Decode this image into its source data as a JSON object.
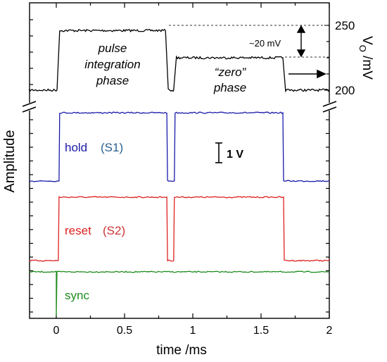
{
  "chart_data": {
    "type": "line",
    "xlabel": "time /ms",
    "ylabel_left": "Amplitude",
    "ylabel_right": "V",
    "ylabel_right_sub": "O",
    "ylabel_right_unit": " /mV",
    "xlim": [
      -0.2,
      2.0
    ],
    "xticks": [
      "0",
      "0.5",
      "1",
      "1.5",
      "2"
    ],
    "xtick_values": [
      0,
      0.5,
      1,
      1.5,
      2
    ],
    "right_ticks": [
      "250",
      "200"
    ],
    "right_tick_values": [
      250,
      200
    ],
    "upper_panel": {
      "ylim": [
        196,
        256
      ],
      "series": [
        {
          "name": "",
          "color": "#000000",
          "points": [
            [
              -0.2,
              200
            ],
            [
              0.005,
              200
            ],
            [
              0.025,
              246
            ],
            [
              0.8,
              246
            ],
            [
              0.82,
              201
            ],
            [
              0.84,
              200
            ],
            [
              0.86,
              200
            ],
            [
              0.88,
              225
            ],
            [
              1.66,
              225
            ],
            [
              1.68,
              200
            ],
            [
              2.0,
              200
            ]
          ]
        }
      ],
      "annotations": {
        "pulse_phase": [
          "pulse",
          "integration",
          "phase"
        ],
        "zero_phase": [
          "“zero”",
          "phase"
        ],
        "delta": "~20 mV"
      }
    },
    "lower_panel": {
      "series": [
        {
          "name": "hold",
          "tag": "(S1)",
          "color": "#1a1aaa",
          "tag_color": "#2a5f8f",
          "points": [
            [
              -0.2,
              0
            ],
            [
              0.02,
              0
            ],
            [
              0.025,
              3.8
            ],
            [
              0.81,
              3.8
            ],
            [
              0.815,
              0
            ],
            [
              0.865,
              0
            ],
            [
              0.87,
              3.8
            ],
            [
              1.66,
              3.8
            ],
            [
              1.665,
              0
            ],
            [
              2.0,
              0
            ]
          ]
        },
        {
          "name": "reset",
          "tag": "(S2)",
          "color": "#dd2222",
          "tag_color": "#cc3333",
          "points": [
            [
              -0.2,
              0
            ],
            [
              0.015,
              0
            ],
            [
              0.02,
              3.8
            ],
            [
              0.81,
              3.8
            ],
            [
              0.815,
              0
            ],
            [
              0.86,
              0
            ],
            [
              0.865,
              3.8
            ],
            [
              1.665,
              3.8
            ],
            [
              1.67,
              0
            ],
            [
              2.0,
              0
            ]
          ]
        },
        {
          "name": "sync",
          "color": "#1e8c1e",
          "points": [
            [
              -0.2,
              0
            ],
            [
              0.0,
              0
            ],
            [
              0.0,
              -2.6
            ],
            [
              0.005,
              0
            ],
            [
              2.0,
              0
            ]
          ]
        }
      ],
      "scale_bar": "1 V"
    }
  }
}
